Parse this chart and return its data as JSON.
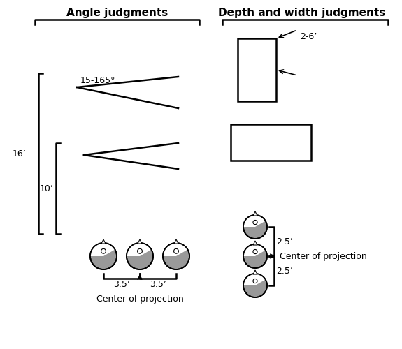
{
  "title_left": "Angle judgments",
  "title_right": "Depth and width judgments",
  "angle_label": "15-165°",
  "dim_16": "16’",
  "dim_10": "10’",
  "dim_35a": "3.5’",
  "dim_35b": "3.5’",
  "label_cop_left": "Center of projection",
  "label_26": "2-6’",
  "dim_25a": "2.5’",
  "dim_25b": "2.5’",
  "label_cop_right": "Center of projection",
  "bg_color": "#ffffff",
  "line_color": "#000000",
  "head_fill_dark": "#999999",
  "head_fill_light": "#ffffff"
}
